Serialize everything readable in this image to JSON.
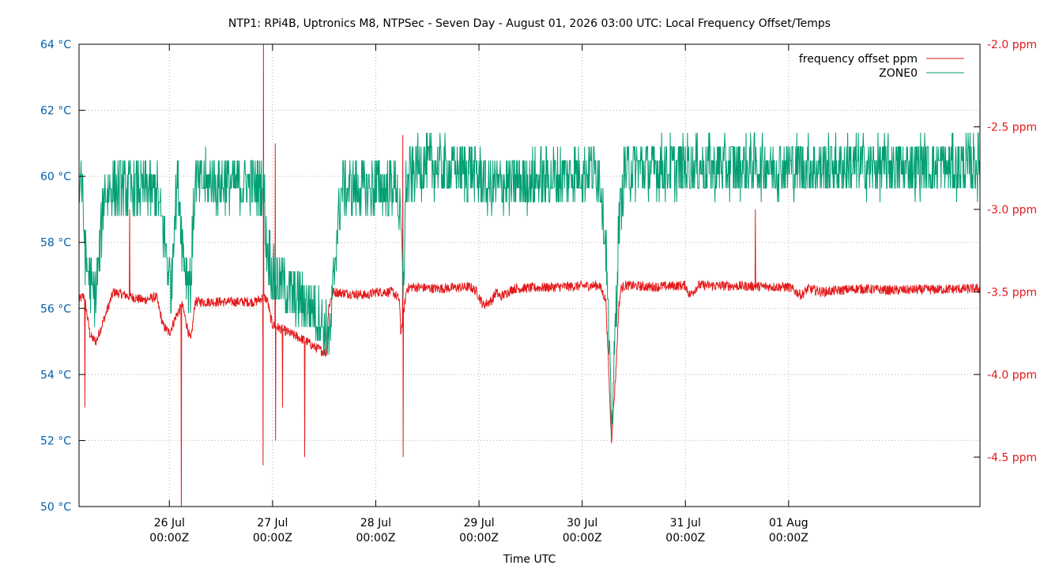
{
  "chart_data": {
    "type": "line",
    "title": "NTP1: RPi4B, Uptronics M8, NTPSec - Seven Day - August 01, 2026 03:00 UTC: Local Frequency Offset/Temps",
    "xlabel": "Time UTC",
    "x_unit": "hours",
    "xlim": [
      -21,
      188.5
    ],
    "x_ticks": [
      {
        "x": 0,
        "line1": "26 Jul",
        "line2": "00:00Z"
      },
      {
        "x": 24,
        "line1": "27 Jul",
        "line2": "00:00Z"
      },
      {
        "x": 48,
        "line1": "28 Jul",
        "line2": "00:00Z"
      },
      {
        "x": 72,
        "line1": "29 Jul",
        "line2": "00:00Z"
      },
      {
        "x": 96,
        "line1": "30 Jul",
        "line2": "00:00Z"
      },
      {
        "x": 120,
        "line1": "31 Jul",
        "line2": "00:00Z"
      },
      {
        "x": 144,
        "line1": "01 Aug",
        "line2": "00:00Z"
      }
    ],
    "y_left": {
      "ylim": [
        50,
        64
      ],
      "ticks": [
        50,
        52,
        54,
        56,
        58,
        60,
        62,
        64
      ],
      "tick_labels": [
        "50 °C",
        "52 °C",
        "54 °C",
        "56 °C",
        "58 °C",
        "60 °C",
        "62 °C",
        "64 °C"
      ],
      "color": "#0060ad"
    },
    "y_right": {
      "ylim": [
        -4.8,
        -2.0
      ],
      "ticks": [
        -4.5,
        -4.0,
        -3.5,
        -3.0,
        -2.5,
        -2.0
      ],
      "tick_labels": [
        "-4.5 ppm",
        "-4.0 ppm",
        "-3.5 ppm",
        "-3.0 ppm",
        "-2.5 ppm",
        "-2.0 ppm"
      ],
      "color": "#e41a1c"
    },
    "grid": true,
    "legend_position": "top-right",
    "series": [
      {
        "name": "frequency offset ppm",
        "axis": "right",
        "color": "#e41a1c",
        "noise": 0.03,
        "x": [
          -21,
          -19.8,
          -18.5,
          -18,
          -17,
          -13,
          -6,
          -3,
          -1.5,
          0,
          1.5,
          3,
          4.5,
          5,
          6,
          20,
          22,
          22.8,
          23.5,
          24,
          28,
          32,
          33.5,
          35,
          36.5,
          37,
          37.5,
          38,
          46,
          48,
          52,
          53.5,
          53.8,
          54.6,
          55.2,
          56.5,
          62,
          70,
          71.5,
          73,
          75,
          76,
          77,
          80,
          100,
          101.5,
          102.2,
          102.8,
          103.8,
          104.5,
          105,
          106,
          112,
          120,
          121,
          123,
          144,
          147,
          148.5,
          152,
          160,
          168,
          188.5
        ],
        "y": [
          -3.55,
          -3.52,
          -3.75,
          -3.78,
          -3.8,
          -3.5,
          -3.55,
          -3.53,
          -3.7,
          -3.75,
          -3.65,
          -3.58,
          -3.75,
          -3.8,
          -3.56,
          -3.56,
          -3.53,
          -3.55,
          -3.65,
          -3.7,
          -3.75,
          -3.8,
          -3.83,
          -3.85,
          -3.87,
          -3.6,
          -3.55,
          -3.5,
          -3.52,
          -3.5,
          -3.5,
          -3.55,
          -3.75,
          -3.6,
          -3.48,
          -3.47,
          -3.48,
          -3.47,
          -3.5,
          -3.58,
          -3.55,
          -3.5,
          -3.53,
          -3.48,
          -3.46,
          -3.55,
          -4.0,
          -4.4,
          -4.0,
          -3.6,
          -3.48,
          -3.46,
          -3.47,
          -3.46,
          -3.52,
          -3.46,
          -3.47,
          -3.52,
          -3.48,
          -3.5,
          -3.48,
          -3.49,
          -3.48
        ],
        "spikes": [
          {
            "x": -19.6,
            "y": -4.2
          },
          {
            "x": -9.2,
            "y": -3.0
          },
          {
            "x": 2.8,
            "y": -4.8
          },
          {
            "x": 21.8,
            "y": -4.55
          },
          {
            "x": 21.9,
            "y": -2.0
          },
          {
            "x": 24.6,
            "y": -2.6
          },
          {
            "x": 24.7,
            "y": -4.4
          },
          {
            "x": 26.3,
            "y": -4.2
          },
          {
            "x": 31.5,
            "y": -4.5
          },
          {
            "x": 54.3,
            "y": -2.55
          },
          {
            "x": 54.4,
            "y": -4.5
          },
          {
            "x": 136.3,
            "y": -3.0
          }
        ]
      },
      {
        "name": "ZONE0",
        "axis": "left",
        "color": "#009e73",
        "noise": 0.9,
        "x": [
          -21,
          -20.5,
          -19.5,
          -18,
          -17,
          -15,
          -5,
          -3,
          -1.5,
          0,
          0.5,
          1,
          2,
          3,
          4,
          5,
          5.5,
          6,
          20,
          22,
          22.5,
          23.5,
          24,
          30,
          35,
          36,
          37.5,
          38.5,
          40,
          46,
          48,
          53,
          54,
          54.3,
          54.6,
          55,
          56,
          58,
          70,
          74,
          100,
          101.5,
          102.2,
          102.8,
          103.5,
          104.5,
          106,
          120,
          130,
          188.5
        ],
        "y": [
          59.5,
          60.2,
          57.5,
          56.5,
          56.5,
          59.6,
          59.6,
          59.6,
          58.5,
          57.0,
          56.5,
          58.5,
          60.0,
          58.0,
          57.0,
          56.8,
          58.5,
          59.8,
          59.8,
          59.7,
          58.0,
          57.5,
          57.0,
          56.3,
          55.8,
          55.3,
          55.2,
          57.5,
          59.6,
          59.6,
          59.7,
          59.7,
          58.0,
          56.5,
          57.5,
          59.7,
          60.0,
          60.3,
          60.2,
          59.7,
          60.2,
          58.0,
          55.0,
          52.5,
          54.5,
          58.5,
          60.2,
          60.3,
          60.3,
          60.3
        ]
      }
    ]
  }
}
